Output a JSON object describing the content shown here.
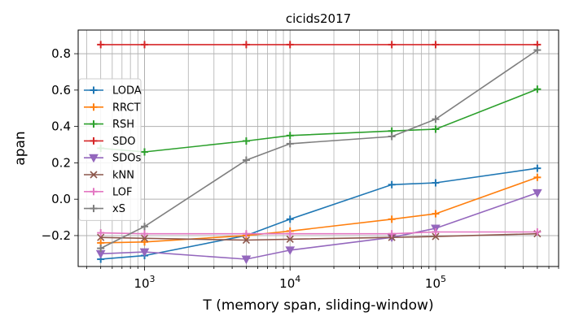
{
  "chart_data": {
    "type": "line",
    "title": "cicids2017",
    "xlabel": "T (memory span, sliding-window)",
    "ylabel": "apan",
    "xscale": "log",
    "xlim": [
      350,
      700000
    ],
    "ylim": [
      -0.37,
      0.93
    ],
    "grid": "major-and-minor",
    "legend_position": "center-left",
    "x": [
      500,
      1000,
      5000,
      10000,
      50000,
      100000,
      500000
    ],
    "x_tick_labels": [
      {
        "base": "10",
        "exp": "3"
      },
      {
        "base": "10",
        "exp": "4"
      },
      {
        "base": "10",
        "exp": "5"
      }
    ],
    "y_ticks": [
      -0.2,
      0.0,
      0.2,
      0.4,
      0.6,
      0.8
    ],
    "y_tick_labels": [
      "−0.2",
      "0.0",
      "0.2",
      "0.4",
      "0.6",
      "0.8"
    ],
    "series": [
      {
        "name": "LODA",
        "color": "#1f77b4",
        "marker": "plus",
        "values": [
          -0.33,
          -0.31,
          -0.2,
          -0.11,
          0.08,
          0.09,
          0.17
        ]
      },
      {
        "name": "RRCT",
        "color": "#ff7f0e",
        "marker": "plus",
        "values": [
          -0.24,
          -0.235,
          -0.2,
          -0.175,
          -0.11,
          -0.08,
          0.12
        ]
      },
      {
        "name": "RSH",
        "color": "#2ca02c",
        "marker": "plus",
        "values": [
          0.28,
          0.26,
          0.32,
          0.35,
          0.375,
          0.385,
          0.605
        ]
      },
      {
        "name": "SDO",
        "color": "#d62728",
        "marker": "plus",
        "values": [
          0.85,
          0.85,
          0.85,
          0.85,
          0.85,
          0.85,
          0.85
        ]
      },
      {
        "name": "SDOs",
        "color": "#9467bd",
        "marker": "triangle-down",
        "values": [
          -0.3,
          -0.29,
          -0.33,
          -0.28,
          -0.21,
          -0.16,
          0.035
        ]
      },
      {
        "name": "kNN",
        "color": "#8c564b",
        "marker": "x",
        "values": [
          -0.21,
          -0.215,
          -0.225,
          -0.22,
          -0.21,
          -0.205,
          -0.19
        ]
      },
      {
        "name": "LOF",
        "color": "#e377c2",
        "marker": "plus",
        "values": [
          -0.185,
          -0.19,
          -0.19,
          -0.19,
          -0.19,
          -0.18,
          -0.18
        ]
      },
      {
        "name": "xS",
        "color": "#7f7f7f",
        "marker": "plus",
        "values": [
          -0.27,
          -0.15,
          0.215,
          0.305,
          0.345,
          0.44,
          0.82
        ]
      }
    ]
  }
}
